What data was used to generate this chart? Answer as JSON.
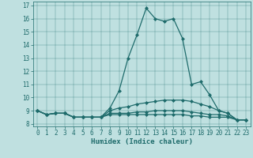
{
  "xlabel": "Humidex (Indice chaleur)",
  "xlim": [
    -0.5,
    23.5
  ],
  "ylim": [
    7.8,
    17.3
  ],
  "yticks": [
    8,
    9,
    10,
    11,
    12,
    13,
    14,
    15,
    16,
    17
  ],
  "xticks": [
    0,
    1,
    2,
    3,
    4,
    5,
    6,
    7,
    8,
    9,
    10,
    11,
    12,
    13,
    14,
    15,
    16,
    17,
    18,
    19,
    20,
    21,
    22,
    23
  ],
  "bg_color": "#bfe0e0",
  "line_color": "#1e6b6b",
  "lines": [
    {
      "x": [
        0,
        1,
        2,
        3,
        4,
        5,
        6,
        7,
        8,
        9,
        10,
        11,
        12,
        13,
        14,
        15,
        16,
        17,
        18,
        19,
        20,
        21,
        22,
        23
      ],
      "y": [
        9.0,
        8.7,
        8.8,
        8.8,
        8.5,
        8.5,
        8.5,
        8.5,
        9.2,
        10.5,
        13.0,
        14.8,
        16.8,
        16.0,
        15.8,
        16.0,
        14.5,
        11.0,
        11.2,
        10.2,
        9.0,
        8.8,
        8.3,
        8.3
      ]
    },
    {
      "x": [
        0,
        1,
        2,
        3,
        4,
        5,
        6,
        7,
        8,
        9,
        10,
        11,
        12,
        13,
        14,
        15,
        16,
        17,
        18,
        19,
        20,
        21,
        22,
        23
      ],
      "y": [
        9.0,
        8.7,
        8.8,
        8.8,
        8.5,
        8.5,
        8.5,
        8.5,
        9.0,
        9.2,
        9.3,
        9.5,
        9.6,
        9.7,
        9.8,
        9.8,
        9.8,
        9.7,
        9.5,
        9.3,
        9.0,
        8.8,
        8.3,
        8.3
      ]
    },
    {
      "x": [
        0,
        1,
        2,
        3,
        4,
        5,
        6,
        7,
        8,
        9,
        10,
        11,
        12,
        13,
        14,
        15,
        16,
        17,
        18,
        19,
        20,
        21,
        22,
        23
      ],
      "y": [
        9.0,
        8.7,
        8.8,
        8.8,
        8.5,
        8.5,
        8.5,
        8.5,
        8.8,
        8.8,
        8.8,
        8.9,
        8.9,
        9.0,
        9.0,
        9.0,
        9.0,
        8.9,
        8.8,
        8.7,
        8.7,
        8.6,
        8.3,
        8.3
      ]
    },
    {
      "x": [
        0,
        1,
        2,
        3,
        4,
        5,
        6,
        7,
        8,
        9,
        10,
        11,
        12,
        13,
        14,
        15,
        16,
        17,
        18,
        19,
        20,
        21,
        22,
        23
      ],
      "y": [
        9.0,
        8.7,
        8.8,
        8.8,
        8.5,
        8.5,
        8.5,
        8.5,
        8.7,
        8.7,
        8.7,
        8.7,
        8.7,
        8.7,
        8.7,
        8.7,
        8.7,
        8.6,
        8.6,
        8.5,
        8.5,
        8.5,
        8.3,
        8.3
      ]
    }
  ]
}
